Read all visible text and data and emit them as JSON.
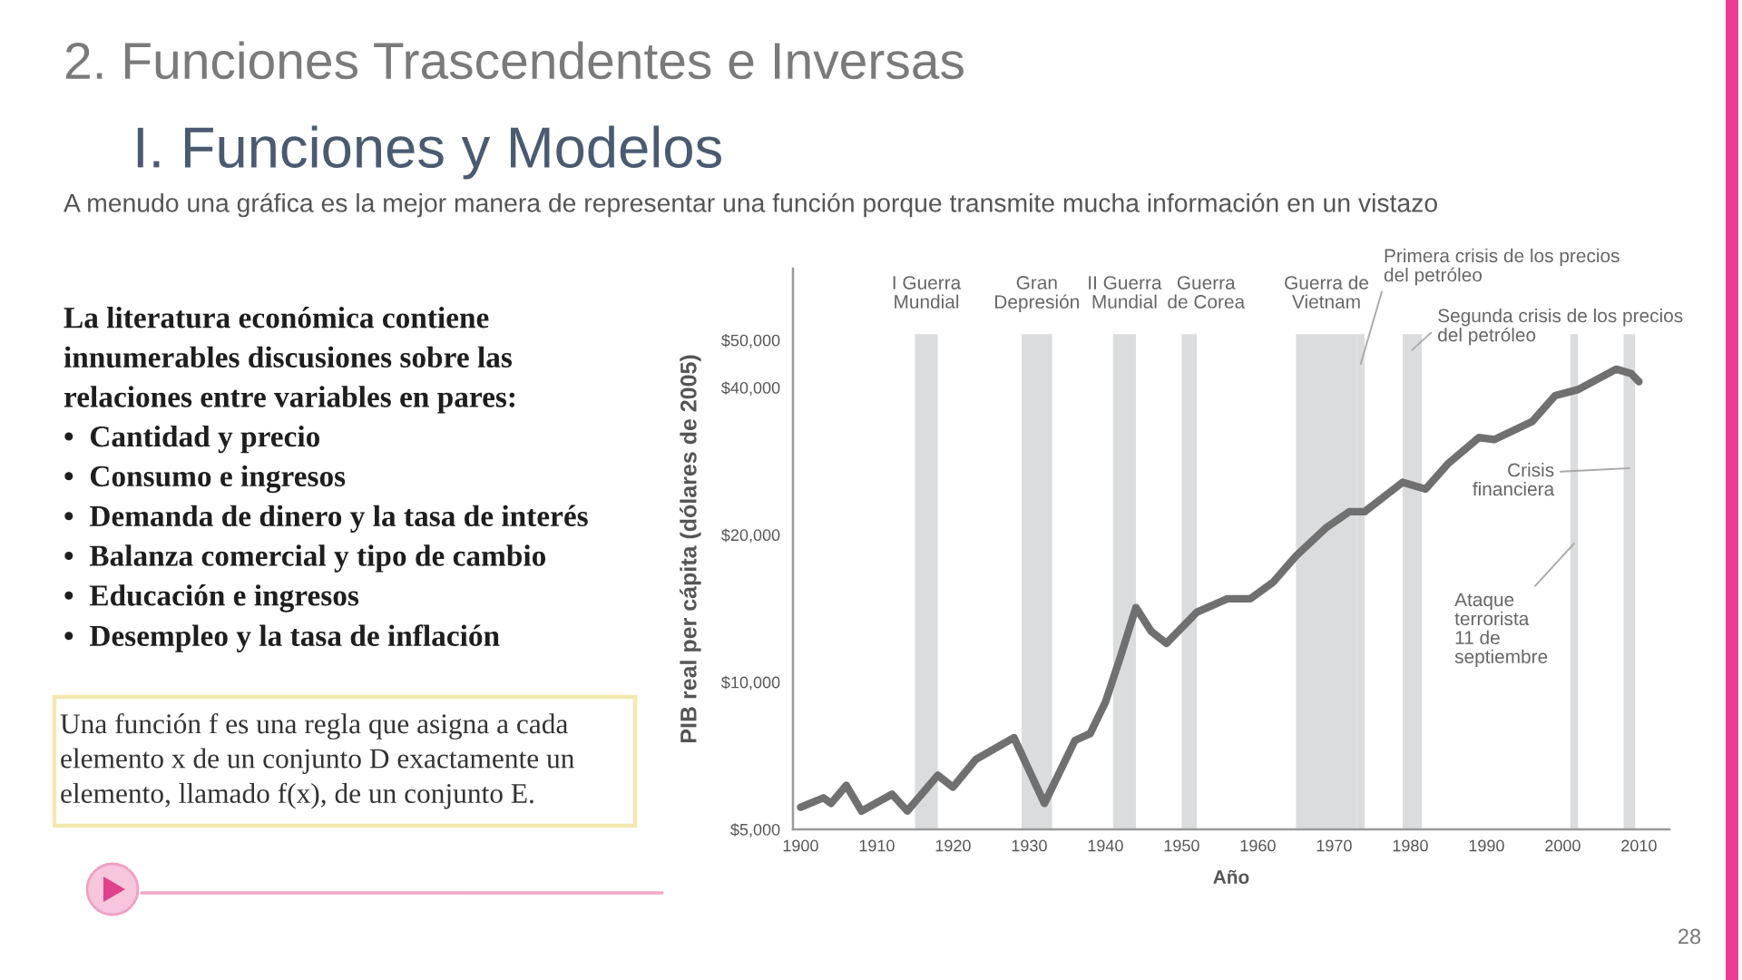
{
  "chart_data": {
    "type": "line",
    "title": "2. Funciones Trascendentes e Inversas",
    "subtitle": "I. Funciones y Modelos",
    "xlabel": "Año",
    "ylabel": "PIB real per cápita (dólares de 2005)",
    "log": "y",
    "x": [
      1900,
      1903,
      1904,
      1906,
      1908,
      1912,
      1914,
      1918,
      1920,
      1923,
      1928,
      1932,
      1936,
      1938,
      1940,
      1942,
      1944,
      1946,
      1948,
      1952,
      1956,
      1959,
      1962,
      1965,
      1969,
      1972,
      1974,
      1979,
      1982,
      1985,
      1989,
      1991,
      1996,
      1999,
      2002,
      2007,
      2009,
      2010
    ],
    "series": [
      {
        "color": "#707070",
        "values": [
          5550,
          5800,
          5650,
          6150,
          5450,
          5900,
          5450,
          6450,
          6100,
          6950,
          7700,
          5650,
          7600,
          7850,
          9100,
          11300,
          14200,
          12700,
          12000,
          13900,
          14800,
          14800,
          16000,
          18100,
          20700,
          22300,
          22300,
          25600,
          24800,
          28000,
          31600,
          31300,
          34100,
          38500,
          39600,
          43600,
          42700,
          41100
        ]
      }
    ],
    "xlim": [
      1899,
      2014
    ],
    "xticks": [
      1900,
      1910,
      1920,
      1930,
      1940,
      1950,
      1960,
      1970,
      1980,
      1990,
      2000,
      2010
    ],
    "ylim": [
      5000,
      70000
    ],
    "yticks": [
      {
        "value": 5000,
        "label": "$5,000"
      },
      {
        "value": 10000,
        "label": "$10,000"
      },
      {
        "value": 20000,
        "label": "$20,000"
      },
      {
        "value": 40000,
        "label": "$40,000"
      },
      {
        "value": 50000,
        "label": "$50,000"
      }
    ],
    "bands": [
      {
        "axis": "x",
        "from": 1915,
        "to": 1918,
        "label": "I Guerra\nMundial",
        "color": "#dadcde"
      },
      {
        "axis": "x",
        "from": 1929,
        "to": 1933,
        "label": "Gran\nDepresión",
        "color": "#dadcde"
      },
      {
        "axis": "x",
        "from": 1941,
        "to": 1944,
        "label": "II Guerra\nMundial",
        "color": "#dadcde"
      },
      {
        "axis": "x",
        "from": 1950,
        "to": 1952,
        "label": "Guerra\nde Corea",
        "color": "#dadcde"
      },
      {
        "axis": "x",
        "from": 1965,
        "to": 1973,
        "label": "Guerra de\nVietnam",
        "color": "#dadcde"
      },
      {
        "axis": "x",
        "from": 1973,
        "to": 1974,
        "label": "Primera crisis de los precios\ndel petróleo",
        "color": "#dadcde"
      },
      {
        "axis": "x",
        "from": 1979,
        "to": 1981.5,
        "label": "Segunda crisis de los precios\ndel petróleo",
        "color": "#dadcde"
      },
      {
        "axis": "x",
        "from": 2001,
        "to": 2002,
        "label": "Ataque\nterrorista\n11 de\nseptiembre",
        "color": "#dadcde"
      },
      {
        "axis": "x",
        "from": 2008,
        "to": 2009.5,
        "label": "Crisis\nfinanciera",
        "color": "#dadcde"
      }
    ],
    "annotations": [
      "A menudo una gráfica es la mejor manera de representar una función porque transmite mucha información en un vistazo",
      "La literatura económica contiene\ninnumerables discusiones sobre las\nrelaciones entre variables en pares:\n•  Cantidad y precio\n•  Consumo e ingresos\n•  Demanda de dinero y la tasa de interés\n•  Balanza comercial y tipo de cambio\n•  Educación e ingresos\n•  Desempleo y la tasa de inflación",
      "Una función f es una regla que asigna a cada\nelemento x de un conjunto D exactamente un\nelemento, llamado f(x), de un conjunto E.",
      "28"
    ]
  }
}
